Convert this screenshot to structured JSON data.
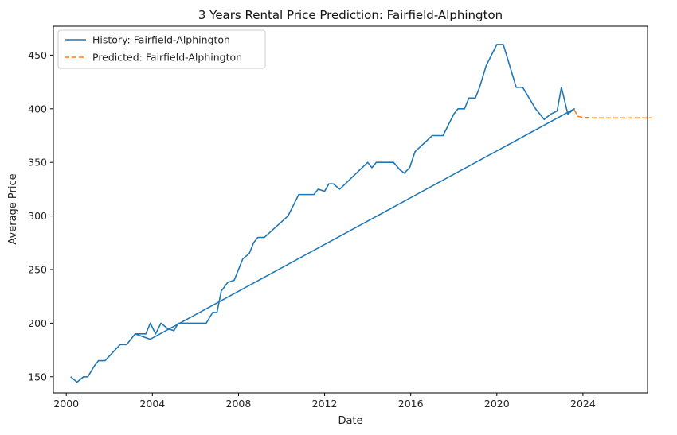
{
  "chart_data": {
    "type": "line",
    "title": "3 Years Rental Price Prediction: Fairfield-Alphington",
    "xlabel": "Date",
    "ylabel": "Average Price",
    "xlim": [
      1999.4,
      2027.0
    ],
    "ylim": [
      135,
      477
    ],
    "x_ticks": [
      2000,
      2004,
      2008,
      2012,
      2016,
      2020,
      2024
    ],
    "x_tick_labels": [
      "2000",
      "2004",
      "2008",
      "2012",
      "2016",
      "2020",
      "2024"
    ],
    "y_ticks": [
      150,
      200,
      250,
      300,
      350,
      400,
      450
    ],
    "y_tick_labels": [
      "150",
      "200",
      "250",
      "300",
      "350",
      "400",
      "450"
    ],
    "grid": false,
    "legend_position": "top-left",
    "series": [
      {
        "name": "History: Fairfield-Alphington",
        "color": "#1f77b4",
        "style": "solid",
        "points": [
          [
            2000.2,
            150
          ],
          [
            2000.5,
            145
          ],
          [
            2000.8,
            150
          ],
          [
            2001.0,
            150
          ],
          [
            2001.3,
            160
          ],
          [
            2001.5,
            165
          ],
          [
            2001.8,
            165
          ],
          [
            2002.5,
            180
          ],
          [
            2002.8,
            180
          ],
          [
            2003.2,
            190
          ],
          [
            2003.7,
            190
          ],
          [
            2003.9,
            200
          ],
          [
            2004.15,
            190
          ],
          [
            2004.4,
            200
          ],
          [
            2004.7,
            195
          ],
          [
            2005.0,
            193
          ],
          [
            2005.2,
            200
          ],
          [
            2005.5,
            200
          ],
          [
            2006.5,
            200
          ],
          [
            2006.8,
            210
          ],
          [
            2007.0,
            210
          ],
          [
            2007.2,
            230
          ],
          [
            2007.5,
            238
          ],
          [
            2007.8,
            240
          ],
          [
            2008.2,
            260
          ],
          [
            2008.5,
            265
          ],
          [
            2008.7,
            275
          ],
          [
            2008.9,
            280
          ],
          [
            2009.2,
            280
          ],
          [
            2010.3,
            300
          ],
          [
            2010.8,
            320
          ],
          [
            2011.5,
            320
          ],
          [
            2011.7,
            325
          ],
          [
            2012.0,
            323
          ],
          [
            2012.2,
            330
          ],
          [
            2012.4,
            330
          ],
          [
            2012.7,
            325
          ],
          [
            2014.0,
            350
          ],
          [
            2014.2,
            345
          ],
          [
            2014.4,
            350
          ],
          [
            2015.2,
            350
          ],
          [
            2015.5,
            343
          ],
          [
            2015.7,
            340
          ],
          [
            2015.95,
            345
          ],
          [
            2016.2,
            360
          ],
          [
            2017.0,
            375
          ],
          [
            2017.5,
            375
          ],
          [
            2018.0,
            395
          ],
          [
            2018.2,
            400
          ],
          [
            2018.5,
            400
          ],
          [
            2018.7,
            410
          ],
          [
            2019.0,
            410
          ],
          [
            2019.2,
            420
          ],
          [
            2019.5,
            440
          ],
          [
            2020.0,
            460
          ],
          [
            2020.3,
            460
          ],
          [
            2020.9,
            420
          ],
          [
            2021.2,
            420
          ],
          [
            2021.5,
            410
          ],
          [
            2021.8,
            400
          ],
          [
            2022.2,
            390
          ],
          [
            2022.5,
            395
          ],
          [
            2022.8,
            398
          ],
          [
            2023.0,
            420
          ],
          [
            2023.3,
            395
          ],
          [
            2023.6,
            400
          ],
          [
            2003.9,
            185
          ],
          [
            2003.2,
            190
          ]
        ]
      },
      {
        "name": "Predicted: Fairfield-Alphington",
        "color": "#ff7f0e",
        "style": "dashed",
        "points": [
          [
            2023.6,
            399
          ],
          [
            2023.75,
            393
          ],
          [
            2024.0,
            392
          ],
          [
            2024.5,
            391.5
          ],
          [
            2025.0,
            391.5
          ],
          [
            2025.5,
            391.5
          ],
          [
            2026.0,
            391.5
          ],
          [
            2026.5,
            391.5
          ],
          [
            2027.2,
            391.5
          ]
        ]
      }
    ]
  }
}
